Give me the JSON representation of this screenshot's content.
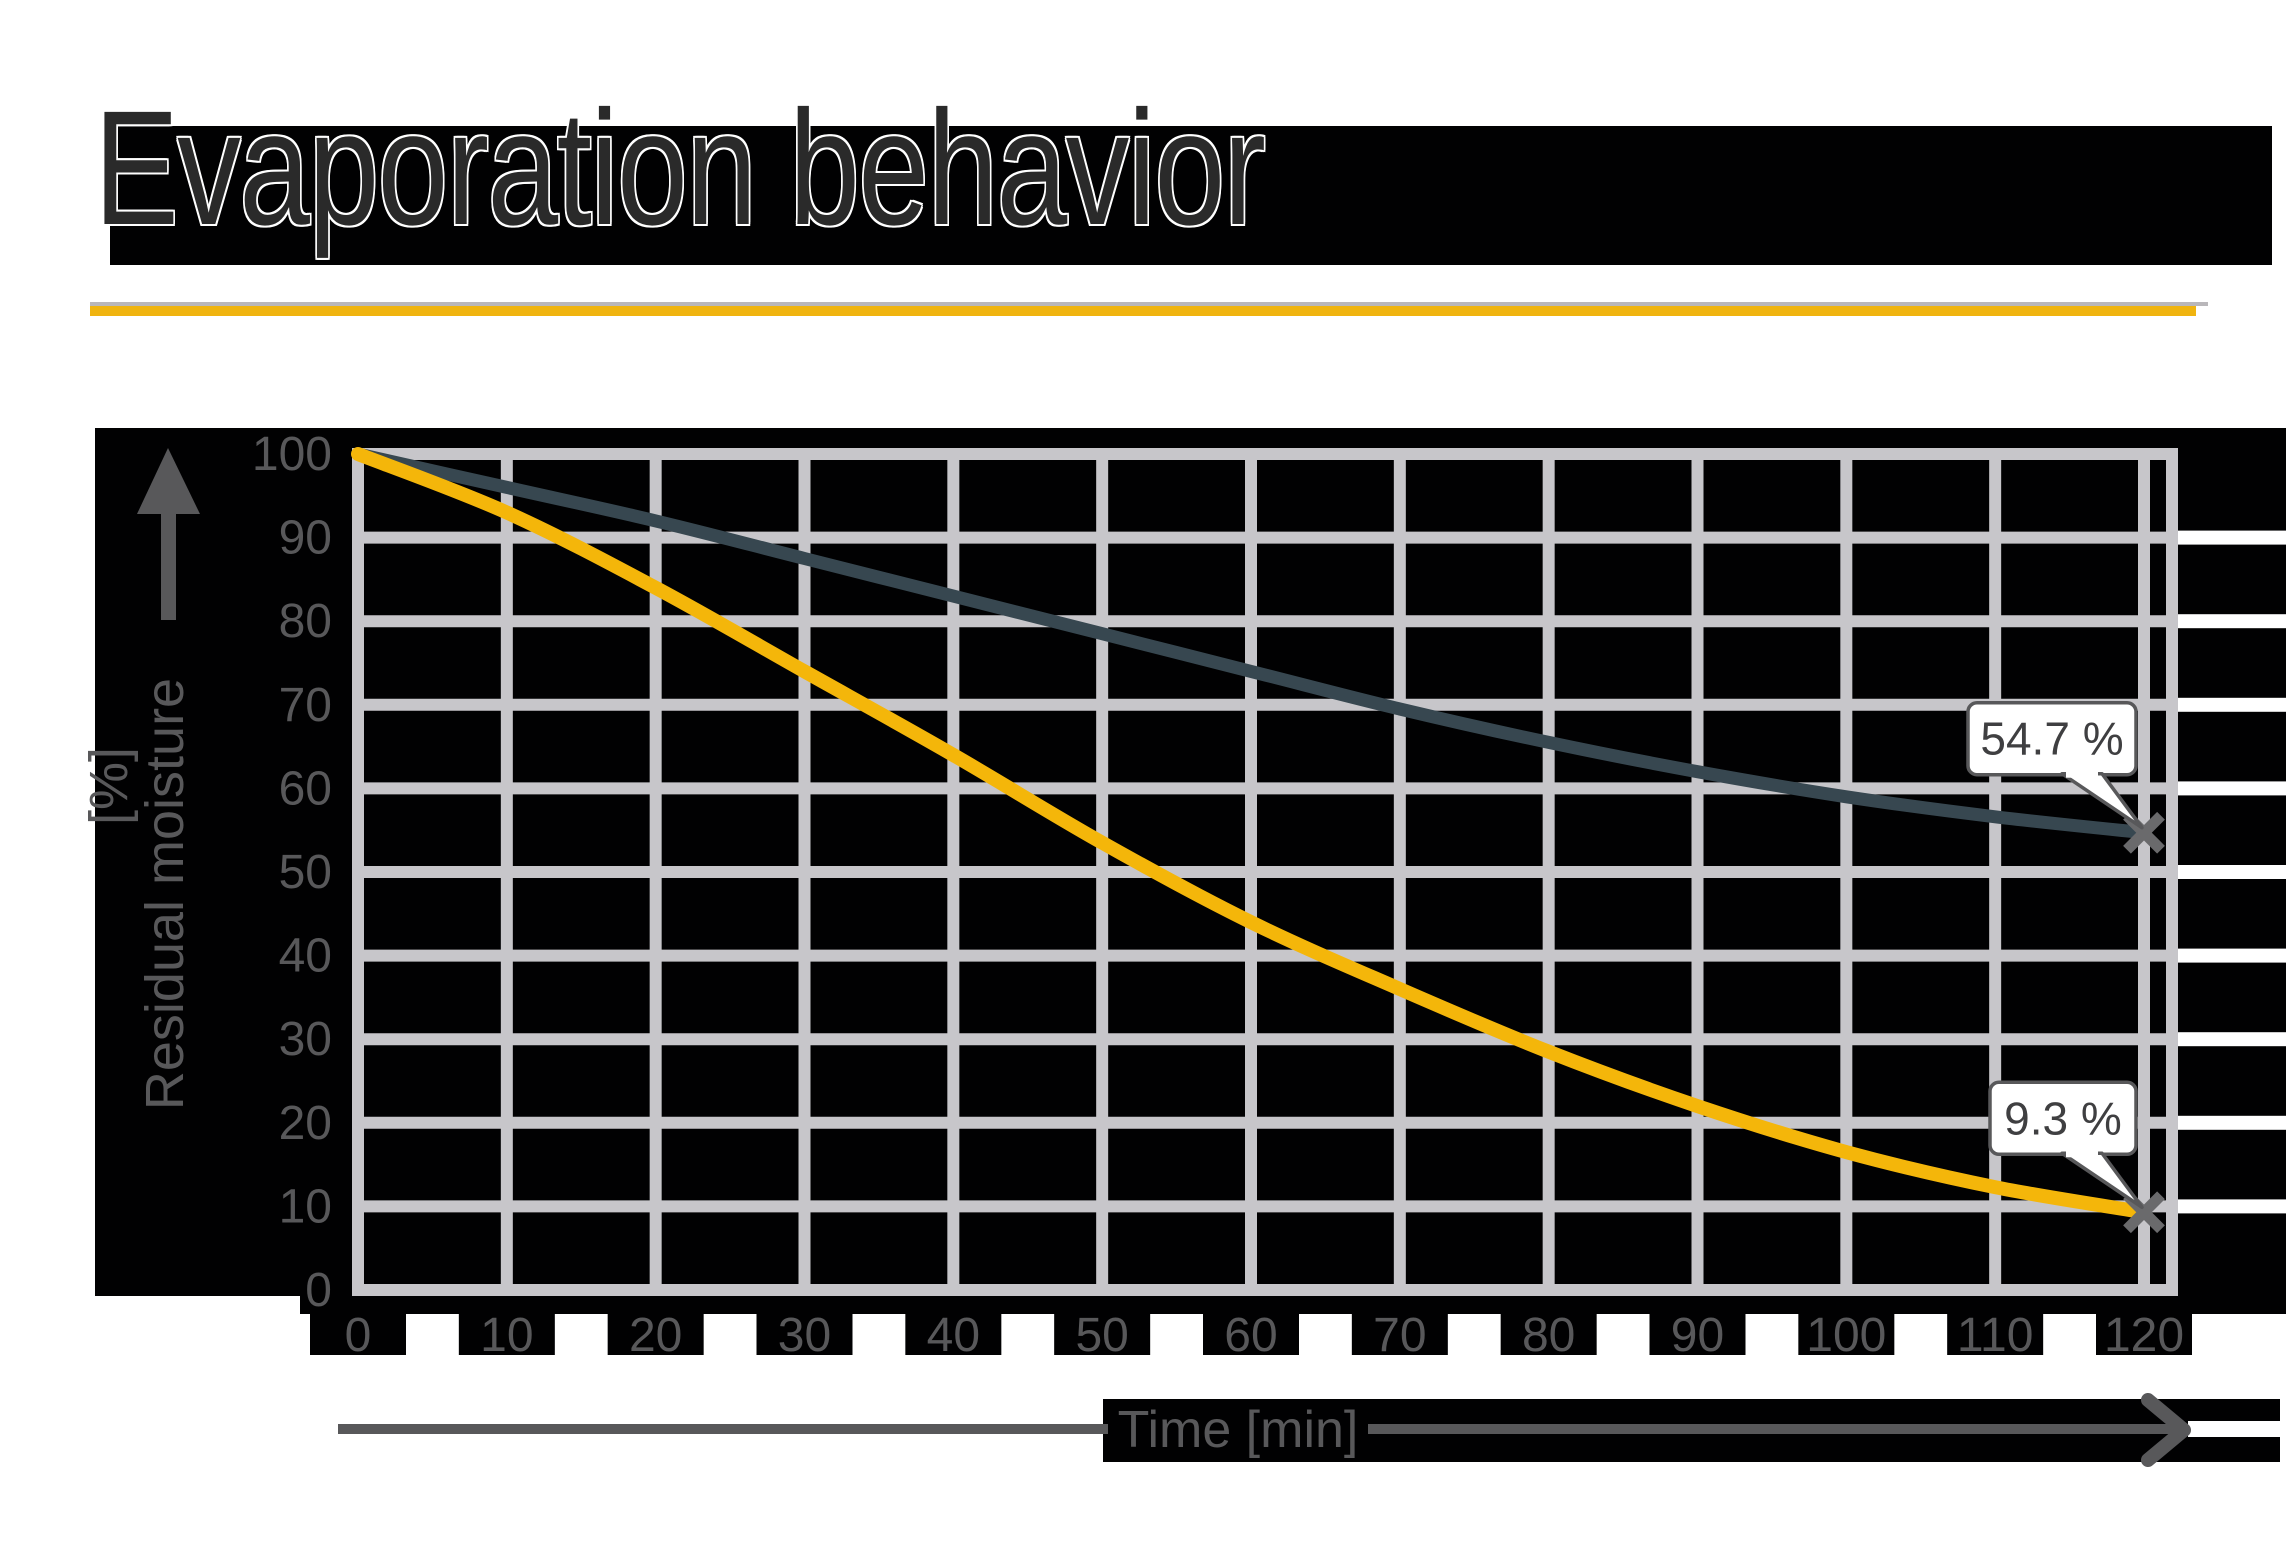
{
  "page": {
    "title": "Evaporation behavior",
    "background": "#ffffff"
  },
  "divider": {
    "color": "#f0b40f",
    "shadow_color": "#b9b7ba"
  },
  "chart_data": {
    "type": "line",
    "title": "Evaporation behavior",
    "xlabel": "Time [min]",
    "ylabel": "Residual moisture [%]",
    "ylabel_lines": [
      "Residual moisture",
      "[%]"
    ],
    "x": [
      0,
      10,
      20,
      30,
      40,
      50,
      60,
      70,
      80,
      90,
      100,
      110,
      120
    ],
    "x_ticks": [
      "0",
      "10",
      "20",
      "30",
      "40",
      "50",
      "60",
      "70",
      "80",
      "90",
      "100",
      "110",
      "120"
    ],
    "y_ticks": [
      "100",
      "90",
      "80",
      "70",
      "60",
      "50",
      "40",
      "30",
      "20",
      "10",
      "0"
    ],
    "xlim": [
      0,
      122
    ],
    "ylim": [
      0,
      100
    ],
    "grid": true,
    "legend": null,
    "marker": "x",
    "series": [
      {
        "id": "series-1",
        "color": "#374750",
        "values": [
          100,
          96,
          92,
          87.5,
          83,
          78.5,
          74,
          69.5,
          65.5,
          62,
          59,
          56.6,
          54.7
        ],
        "end_label": "54.7 %"
      },
      {
        "id": "series-2",
        "color": "#f4b60a",
        "values": [
          100,
          93,
          84,
          74,
          64,
          53.5,
          44,
          36,
          28.5,
          22,
          16.5,
          12.3,
          9.3
        ],
        "end_label": "9.3 %"
      }
    ]
  },
  "colors": {
    "panel_black": "#010102",
    "grid": "#c7c6ca",
    "axis_text": "#58585a",
    "title_text": "#2a2a2a",
    "callout_border": "#58585a",
    "callout_text": "#3f3f41",
    "marker": "#6a6a6c",
    "arrow": "#58585a"
  }
}
